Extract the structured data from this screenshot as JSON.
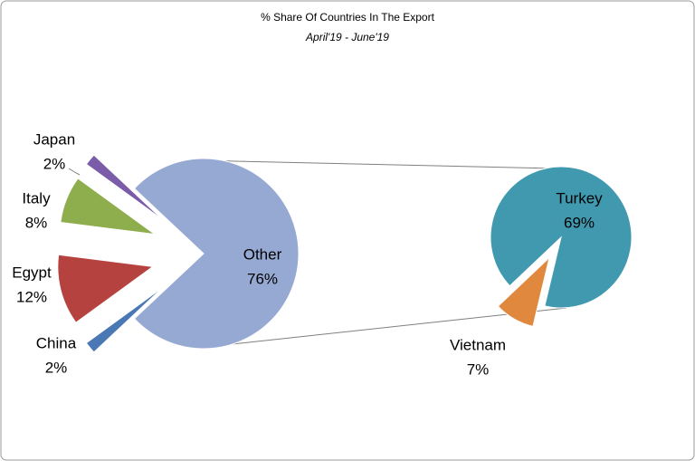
{
  "chart_data": {
    "type": "pie-of-pie",
    "title": "% Share Of Countries In The Export",
    "subtitle": "April'19 - June'19",
    "categories": [
      "Other",
      "Japan",
      "Italy",
      "Egypt",
      "China"
    ],
    "values": [
      76,
      2,
      8,
      12,
      2
    ],
    "value_labels": [
      "76%",
      "2%",
      "8%",
      "12%",
      "2%"
    ],
    "colors": [
      "#95a9d3",
      "#7b5ca8",
      "#8eae4e",
      "#b5423f",
      "#4a78b5"
    ],
    "breakdown": {
      "categories": [
        "Turkey",
        "Vietnam"
      ],
      "values": [
        69,
        7
      ],
      "value_labels": [
        "69%",
        "7%"
      ],
      "colors": [
        "#4199b0",
        "#e0883e"
      ]
    }
  }
}
